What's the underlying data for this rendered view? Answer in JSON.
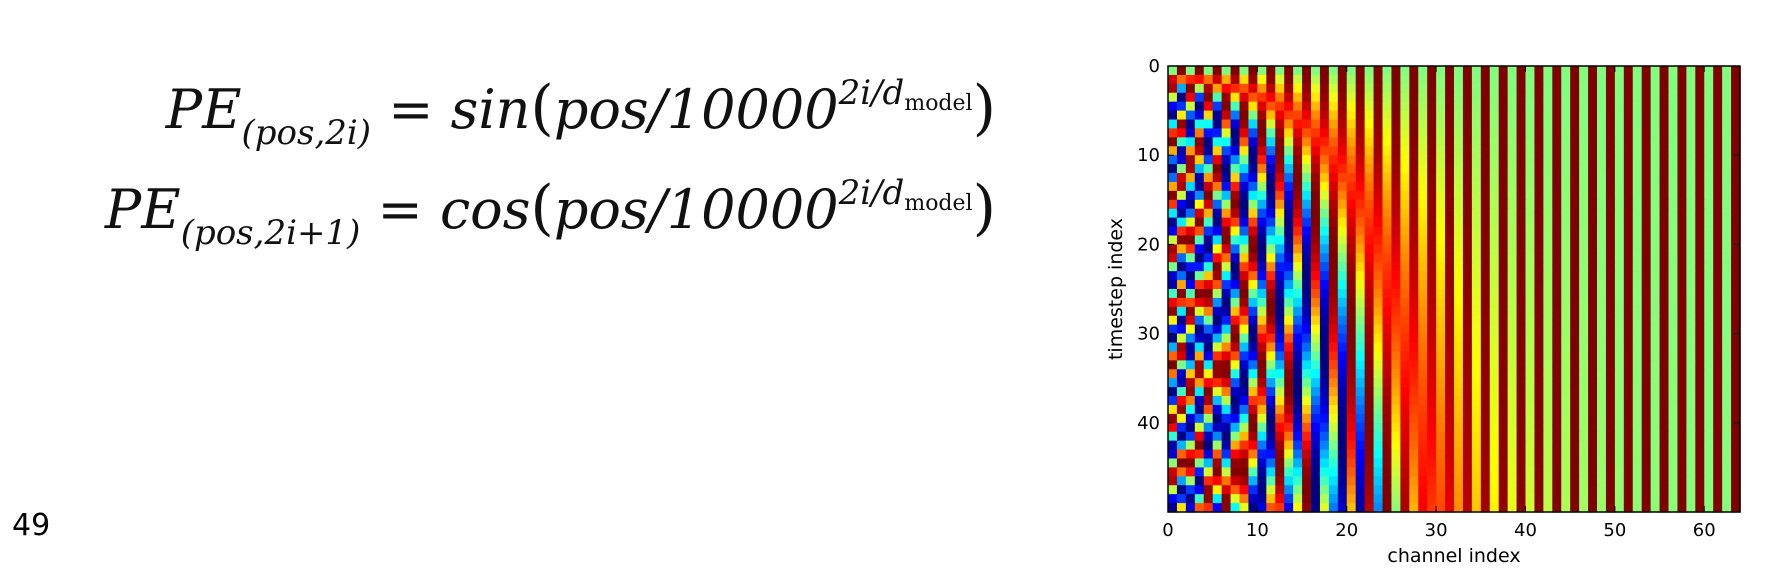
{
  "equations": {
    "line1": {
      "lhs_main": "PE",
      "lhs_sub": "(pos,2i)",
      "equals": "=",
      "func": "sin",
      "arg": "pos/10000",
      "exp_main": "2i/d",
      "exp_sub": "model",
      "close": ")"
    },
    "line2": {
      "lhs_main": "PE",
      "lhs_sub": "(pos,2i+1)",
      "equals": "=",
      "func": "cos",
      "arg": "pos/10000",
      "exp_main": "2i/d",
      "exp_sub": "model",
      "close": ")"
    }
  },
  "page_number": "49",
  "chart_data": {
    "type": "heatmap",
    "description_of_values": "sinusoidal positional encoding, even channels sin, odd channels cos",
    "xlabel": "channel index",
    "ylabel": "timestep index",
    "xlim": [
      0,
      64
    ],
    "ylim": [
      50,
      0
    ],
    "n_channels": 64,
    "n_timesteps": 50,
    "d_model": 64,
    "colormap": "jet",
    "value_range": [
      -1,
      1
    ],
    "x_ticks": [
      0,
      10,
      20,
      30,
      40,
      50,
      60
    ],
    "y_ticks": [
      0,
      10,
      20,
      30,
      40
    ],
    "grid": false,
    "legend": "none"
  }
}
